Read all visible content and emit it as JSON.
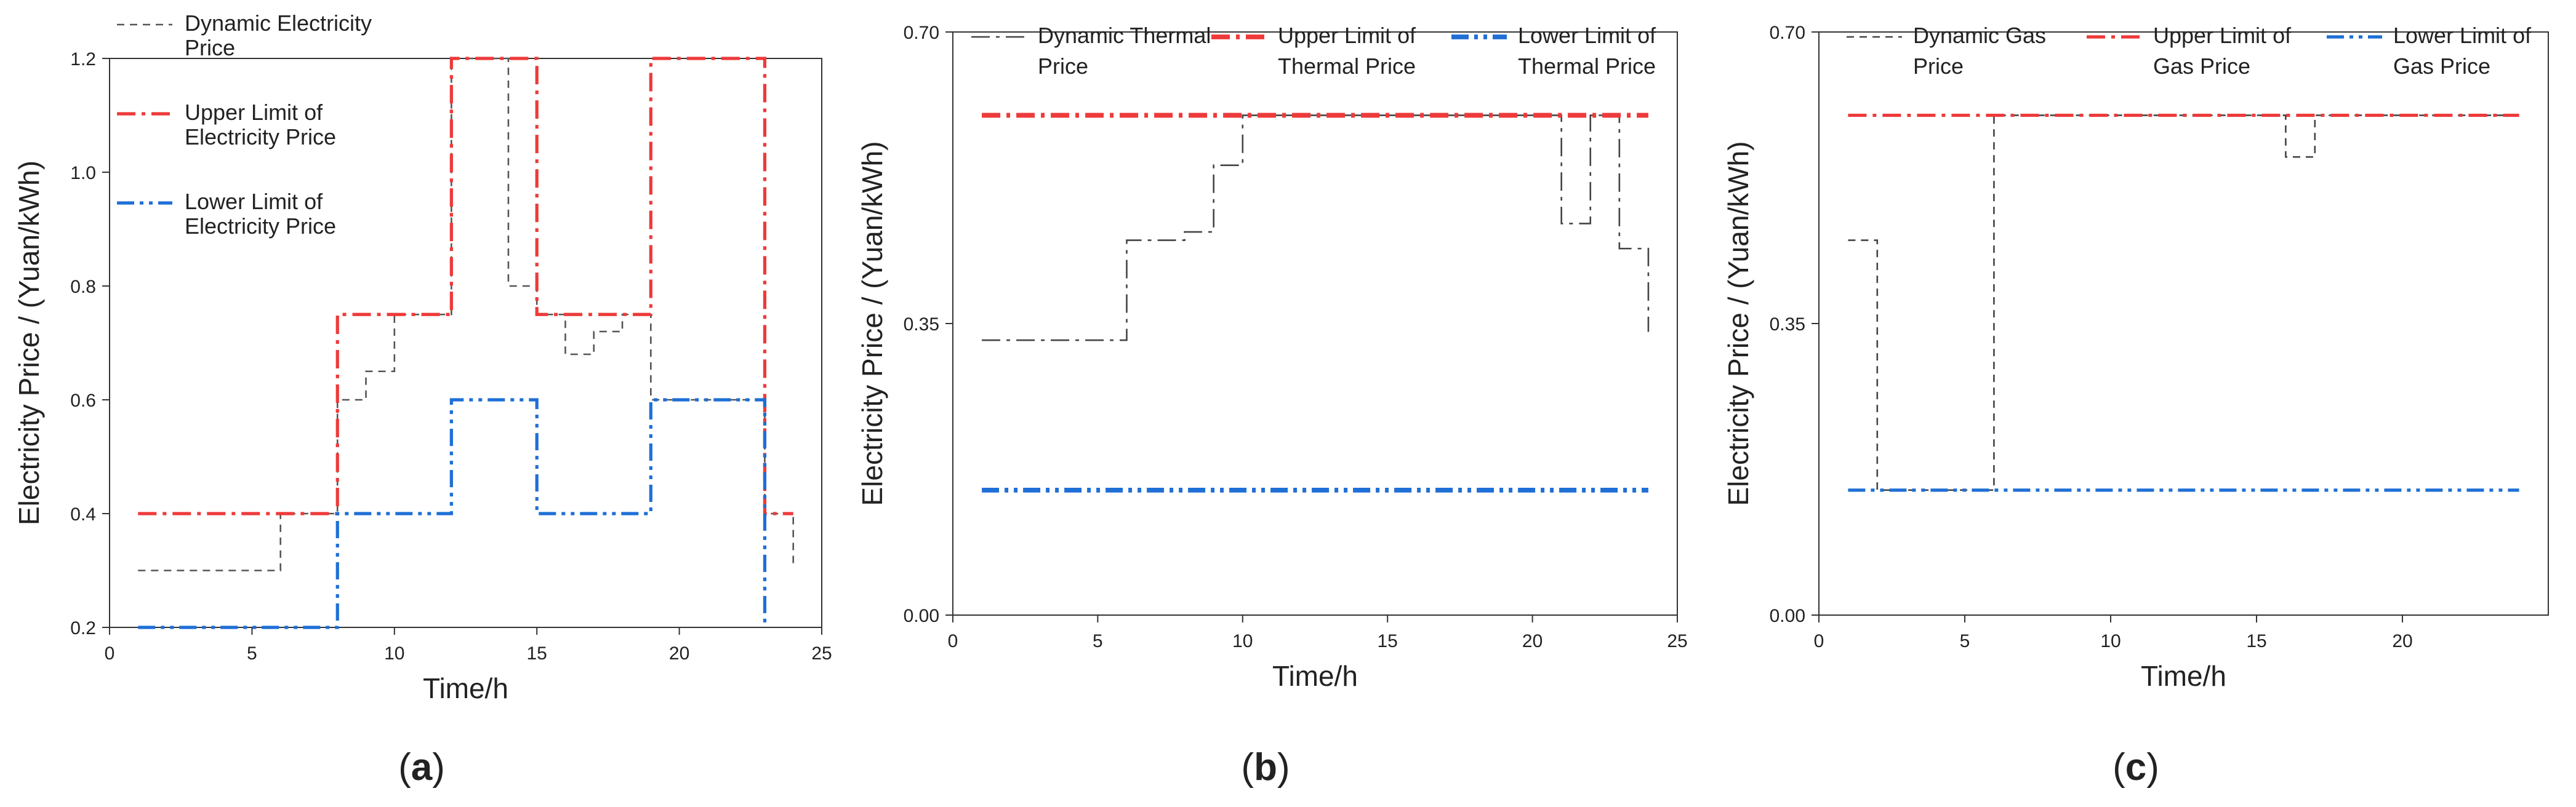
{
  "figure": {
    "panels": [
      {
        "caption_open": "(",
        "caption_letter": "a",
        "caption_close": ")"
      },
      {
        "caption_open": "(",
        "caption_letter": "b",
        "caption_close": ")"
      },
      {
        "caption_open": "(",
        "caption_letter": "c",
        "caption_close": ")"
      }
    ]
  },
  "chart_data": [
    {
      "type": "line",
      "step": true,
      "panel": "a",
      "xlabel": "Time/h",
      "ylabel": "Electricity Price / (Yuan/kWh)",
      "xlim": [
        0,
        25
      ],
      "ylim": [
        0.2,
        1.2
      ],
      "xticks": [
        0,
        5,
        10,
        15,
        20,
        25
      ],
      "yticks": [
        0.2,
        0.4,
        0.6,
        0.8,
        1.0,
        1.2
      ],
      "ytick_labels": [
        "0.2",
        "0.4",
        "0.6",
        "0.8",
        "1.0",
        "1.2"
      ],
      "ytick_font": "sans",
      "legend_position": "top-left",
      "series": [
        {
          "name_lines": [
            "Dynamic Electricity",
            "Price"
          ],
          "color": "#555555",
          "style": "dash",
          "width": 1,
          "x": [
            1,
            2,
            3,
            4,
            5,
            6,
            7,
            8,
            9,
            10,
            11,
            12,
            13,
            14,
            15,
            16,
            17,
            18,
            19,
            20,
            21,
            22,
            23,
            24
          ],
          "y": [
            0.3,
            0.3,
            0.3,
            0.3,
            0.3,
            0.4,
            0.4,
            0.6,
            0.65,
            0.75,
            0.75,
            1.2,
            1.2,
            0.8,
            0.75,
            0.68,
            0.72,
            0.75,
            0.6,
            0.6,
            0.6,
            0.6,
            0.4,
            0.31
          ]
        },
        {
          "name_lines": [
            "Upper Limit of",
            "Electricity Price"
          ],
          "color": "#ee3a3a",
          "style": "dashdot",
          "width": 2,
          "x": [
            1,
            2,
            3,
            4,
            5,
            6,
            7,
            8,
            9,
            10,
            11,
            12,
            13,
            14,
            15,
            16,
            17,
            18,
            19,
            20,
            21,
            22,
            23,
            24
          ],
          "y": [
            0.4,
            0.4,
            0.4,
            0.4,
            0.4,
            0.4,
            0.4,
            0.75,
            0.75,
            0.75,
            0.75,
            1.2,
            1.2,
            1.2,
            0.75,
            0.75,
            0.75,
            0.75,
            1.2,
            1.2,
            1.2,
            1.2,
            0.4,
            0.4
          ]
        },
        {
          "name_lines": [
            "Lower Limit of",
            "Electricity Price"
          ],
          "color": "#1f6fd6",
          "style": "dashdotdot",
          "width": 2,
          "x": [
            1,
            2,
            3,
            4,
            5,
            6,
            7,
            8,
            9,
            10,
            11,
            12,
            13,
            14,
            15,
            16,
            17,
            18,
            19,
            20,
            21,
            22,
            23
          ],
          "y": [
            0.2,
            0.2,
            0.2,
            0.2,
            0.2,
            0.2,
            0.2,
            0.4,
            0.4,
            0.4,
            0.4,
            0.6,
            0.6,
            0.6,
            0.4,
            0.4,
            0.4,
            0.4,
            0.6,
            0.6,
            0.6,
            0.6,
            0.2
          ]
        }
      ]
    },
    {
      "type": "line",
      "step": true,
      "panel": "b",
      "xlabel": "Time/h",
      "ylabel": "Electricity Price / (Yuan/kWh)",
      "xlim": [
        0,
        25
      ],
      "ylim": [
        0,
        0.7
      ],
      "xticks": [
        0,
        5,
        10,
        15,
        20,
        25
      ],
      "yticks": [
        0,
        0.35,
        0.7
      ],
      "ytick_labels": [
        "0.00",
        "0.35",
        "0.70"
      ],
      "ytick_font": "mono",
      "legend_position": "top",
      "series": [
        {
          "name_lines": [
            "Dynamic Thermal",
            "Price"
          ],
          "color": "#444444",
          "style": "dashdot",
          "width": 1,
          "x": [
            1,
            2,
            3,
            4,
            5,
            6,
            7,
            8,
            9,
            10,
            11,
            12,
            13,
            14,
            15,
            16,
            17,
            18,
            19,
            20,
            21,
            22,
            23,
            24
          ],
          "y": [
            0.33,
            0.33,
            0.33,
            0.33,
            0.33,
            0.45,
            0.45,
            0.46,
            0.54,
            0.6,
            0.6,
            0.6,
            0.6,
            0.6,
            0.6,
            0.6,
            0.6,
            0.6,
            0.6,
            0.6,
            0.47,
            0.6,
            0.44,
            0.34
          ]
        },
        {
          "name_lines": [
            "Upper Limit of",
            "Thermal Price"
          ],
          "color": "#ee3a3a",
          "style": "dashdot",
          "width": 3,
          "x": [
            1,
            24
          ],
          "y": [
            0.6,
            0.6
          ]
        },
        {
          "name_lines": [
            "Lower Limit of",
            "Thermal Price"
          ],
          "color": "#1f6fd6",
          "style": "dashdotdot",
          "width": 3,
          "x": [
            1,
            24
          ],
          "y": [
            0.15,
            0.15
          ]
        }
      ]
    },
    {
      "type": "line",
      "step": true,
      "panel": "c",
      "xlabel": "Time/h",
      "ylabel": "Electricity Price / (Yuan/kWh)",
      "xlim": [
        0,
        25
      ],
      "ylim": [
        0,
        0.7
      ],
      "xticks": [
        0,
        5,
        10,
        15,
        20
      ],
      "yticks": [
        0,
        0.35,
        0.7
      ],
      "ytick_labels": [
        "0.00",
        "0.35",
        "0.70"
      ],
      "ytick_font": "mono",
      "legend_position": "top",
      "series": [
        {
          "name_lines": [
            "Dynamic Gas",
            "Price"
          ],
          "color": "#444444",
          "style": "dash",
          "width": 1,
          "x": [
            1,
            2,
            3,
            4,
            5,
            6,
            7,
            8,
            9,
            10,
            11,
            12,
            13,
            14,
            15,
            16,
            17,
            18,
            19,
            20,
            21,
            22,
            23,
            24
          ],
          "y": [
            0.45,
            0.15,
            0.15,
            0.15,
            0.15,
            0.6,
            0.6,
            0.6,
            0.6,
            0.6,
            0.6,
            0.6,
            0.6,
            0.6,
            0.6,
            0.55,
            0.6,
            0.6,
            0.6,
            0.6,
            0.6,
            0.6,
            0.6,
            0.6
          ]
        },
        {
          "name_lines": [
            "Upper Limit of",
            "Gas Price"
          ],
          "color": "#ee3a3a",
          "style": "dashdot",
          "width": 2,
          "x": [
            1,
            24
          ],
          "y": [
            0.6,
            0.6
          ]
        },
        {
          "name_lines": [
            "Lower Limit of",
            "Gas Price"
          ],
          "color": "#1f6fd6",
          "style": "dashdotdot",
          "width": 2,
          "x": [
            1,
            24
          ],
          "y": [
            0.15,
            0.15
          ]
        }
      ]
    }
  ]
}
